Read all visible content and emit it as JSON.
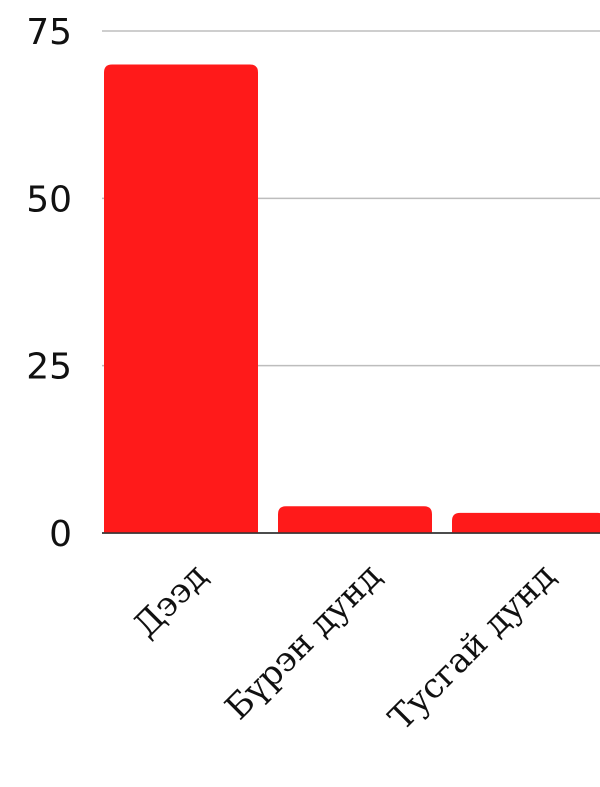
{
  "chart_data": {
    "type": "bar",
    "title": "",
    "xlabel": "",
    "ylabel": "",
    "categories": [
      "Дээд",
      "Бүрэн дунд",
      "Тусгай дунд"
    ],
    "values": [
      70,
      4,
      3
    ],
    "ylim": [
      0,
      75
    ],
    "yticks": [
      "0",
      "25",
      "50",
      "75"
    ],
    "grid": true,
    "legend": "none",
    "bar_color": "#ff1a1a"
  }
}
